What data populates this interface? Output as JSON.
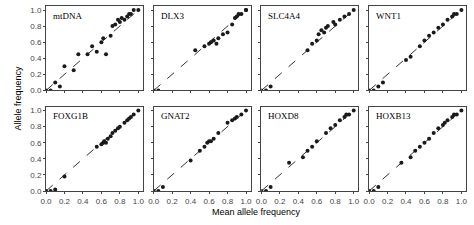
{
  "chart_data": [
    {
      "type": "scatter",
      "title": "mtDNA",
      "xlabel": "Mean allele frequency",
      "ylabel": "Allele frequency",
      "x": [
        0.0,
        0.05,
        0.1,
        0.15,
        0.2,
        0.3,
        0.35,
        0.45,
        0.5,
        0.55,
        0.6,
        0.62,
        0.65,
        0.7,
        0.72,
        0.75,
        0.78,
        0.8,
        0.82,
        0.85,
        0.88,
        0.9,
        0.92,
        0.95,
        1.0
      ],
      "values": [
        0.0,
        0.0,
        0.1,
        0.05,
        0.3,
        0.25,
        0.45,
        0.45,
        0.55,
        0.48,
        0.6,
        0.65,
        0.45,
        0.68,
        0.8,
        0.82,
        0.88,
        0.85,
        0.9,
        0.88,
        0.92,
        0.95,
        0.95,
        1.0,
        1.0
      ],
      "color": "#1a1a1a",
      "marker": "circle",
      "line_style": "dashed",
      "grid": false,
      "tick_labels": "y",
      "xlim": [
        0.0,
        1.05
      ],
      "ylim": [
        0.0,
        1.05
      ],
      "xticks": [
        {
          "value": 0.0,
          "label": "0.0"
        },
        0.2,
        0.4,
        0.6,
        0.8,
        {
          "value": 1.0,
          "label": "1.0"
        }
      ],
      "yticks": [
        {
          "value": 0.0,
          "label": "0.0"
        },
        0.2,
        0.4,
        0.6,
        0.8,
        {
          "value": 1.0,
          "label": "1.0"
        }
      ]
    },
    {
      "type": "scatter",
      "title": "DLX3",
      "xlabel": "Mean allele frequency",
      "ylabel": "Allele frequency",
      "x": [
        0.0,
        0.05,
        0.45,
        0.55,
        0.6,
        0.62,
        0.65,
        0.68,
        0.7,
        0.75,
        0.8,
        0.85,
        0.88,
        0.9,
        0.92,
        0.95,
        1.0,
        1.0
      ],
      "values": [
        0.0,
        0.0,
        0.5,
        0.55,
        0.58,
        0.6,
        0.62,
        0.58,
        0.65,
        0.7,
        0.72,
        0.82,
        0.9,
        0.92,
        0.95,
        0.95,
        1.0,
        1.0
      ],
      "color": "#1a1a1a",
      "marker": "circle",
      "line_style": "dashed",
      "grid": false,
      "tick_labels": false,
      "xlim": [
        0.0,
        1.05
      ],
      "ylim": [
        0.0,
        1.05
      ],
      "xticks": [
        {
          "value": 0.0,
          "label": "0.0"
        },
        0.2,
        0.4,
        0.6,
        0.8,
        {
          "value": 1.0,
          "label": "1.0"
        }
      ],
      "yticks": [
        {
          "value": 0.0,
          "label": "0.0"
        },
        0.2,
        0.4,
        0.6,
        0.8,
        {
          "value": 1.0,
          "label": "1.0"
        }
      ]
    },
    {
      "type": "scatter",
      "title": "SLC4A4",
      "xlabel": "Mean allele frequency",
      "ylabel": "Allele frequency",
      "x": [
        0.0,
        0.05,
        0.1,
        0.5,
        0.55,
        0.6,
        0.62,
        0.65,
        0.68,
        0.7,
        0.72,
        0.78,
        0.8,
        0.85,
        0.9,
        0.95,
        1.0
      ],
      "values": [
        0.0,
        0.0,
        0.05,
        0.5,
        0.58,
        0.62,
        0.7,
        0.75,
        0.72,
        0.78,
        0.8,
        0.85,
        0.82,
        0.88,
        0.92,
        0.95,
        1.0
      ],
      "color": "#1a1a1a",
      "marker": "circle",
      "line_style": "dashed",
      "grid": false,
      "tick_labels": false,
      "xlim": [
        0.0,
        1.05
      ],
      "ylim": [
        0.0,
        1.05
      ],
      "xticks": [
        {
          "value": 0.0,
          "label": "0.0"
        },
        0.2,
        0.4,
        0.6,
        0.8,
        {
          "value": 1.0,
          "label": "1.0"
        }
      ],
      "yticks": [
        {
          "value": 0.0,
          "label": "0.0"
        },
        0.2,
        0.4,
        0.6,
        0.8,
        {
          "value": 1.0,
          "label": "1.0"
        }
      ]
    },
    {
      "type": "scatter",
      "title": "WNT1",
      "xlabel": "Mean allele frequency",
      "ylabel": "Allele frequency",
      "x": [
        0.0,
        0.05,
        0.1,
        0.15,
        0.4,
        0.45,
        0.55,
        0.6,
        0.65,
        0.7,
        0.75,
        0.8,
        0.85,
        0.9,
        0.92,
        0.95,
        1.0
      ],
      "values": [
        0.0,
        0.0,
        0.05,
        0.1,
        0.38,
        0.42,
        0.55,
        0.62,
        0.68,
        0.72,
        0.78,
        0.82,
        0.88,
        0.92,
        0.95,
        0.95,
        1.0
      ],
      "color": "#1a1a1a",
      "marker": "circle",
      "line_style": "dashed",
      "grid": false,
      "tick_labels": false,
      "xlim": [
        0.0,
        1.05
      ],
      "ylim": [
        0.0,
        1.05
      ],
      "xticks": [
        {
          "value": 0.0,
          "label": "0.0"
        },
        0.2,
        0.4,
        0.6,
        0.8,
        {
          "value": 1.0,
          "label": "1.0"
        }
      ],
      "yticks": [
        {
          "value": 0.0,
          "label": "0.0"
        },
        0.2,
        0.4,
        0.6,
        0.8,
        {
          "value": 1.0,
          "label": "1.0"
        }
      ]
    },
    {
      "type": "scatter",
      "title": "FOXG1B",
      "xlabel": "Mean allele frequency",
      "ylabel": "Allele frequency",
      "x": [
        0.0,
        0.05,
        0.1,
        0.2,
        0.55,
        0.6,
        0.62,
        0.63,
        0.65,
        0.67,
        0.7,
        0.72,
        0.75,
        0.78,
        0.8,
        0.85,
        0.88,
        0.9,
        0.92,
        0.95,
        1.0
      ],
      "values": [
        0.0,
        0.0,
        0.02,
        0.18,
        0.55,
        0.58,
        0.6,
        0.62,
        0.6,
        0.65,
        0.68,
        0.72,
        0.75,
        0.78,
        0.8,
        0.85,
        0.88,
        0.9,
        0.92,
        0.95,
        1.0
      ],
      "color": "#1a1a1a",
      "marker": "circle",
      "line_style": "dashed",
      "grid": false,
      "xlim": [
        0.0,
        1.05
      ],
      "ylim": [
        0.0,
        1.05
      ],
      "xticks": [
        {
          "value": 0.0,
          "label": "0.0"
        },
        0.2,
        0.4,
        0.6,
        0.8,
        {
          "value": 1.0,
          "label": "1.0"
        }
      ],
      "yticks": [
        {
          "value": 0.0,
          "label": "0.0"
        },
        0.2,
        0.4,
        0.6,
        0.8,
        {
          "value": 1.0,
          "label": "1.0"
        }
      ]
    },
    {
      "type": "scatter",
      "title": "GNAT2",
      "xlabel": "Mean allele frequency",
      "ylabel": "Allele frequency",
      "x": [
        0.0,
        0.05,
        0.1,
        0.4,
        0.5,
        0.55,
        0.58,
        0.6,
        0.62,
        0.65,
        0.7,
        0.8,
        0.85,
        0.88,
        0.9,
        0.95,
        1.0
      ],
      "values": [
        0.0,
        0.0,
        0.05,
        0.38,
        0.5,
        0.55,
        0.6,
        0.62,
        0.62,
        0.65,
        0.72,
        0.85,
        0.88,
        0.9,
        0.92,
        0.95,
        1.0
      ],
      "color": "#1a1a1a",
      "marker": "circle",
      "line_style": "dashed",
      "grid": false,
      "tick_labels": "x",
      "xlim": [
        0.0,
        1.05
      ],
      "ylim": [
        0.0,
        1.05
      ],
      "xticks": [
        {
          "value": 0.0,
          "label": "0.0"
        },
        0.2,
        0.4,
        0.6,
        0.8,
        {
          "value": 1.0,
          "label": "1.0"
        }
      ],
      "yticks": [
        {
          "value": 0.0,
          "label": "0.0"
        },
        0.2,
        0.4,
        0.6,
        0.8,
        {
          "value": 1.0,
          "label": "1.0"
        }
      ]
    },
    {
      "type": "scatter",
      "title": "HOXD8",
      "xlabel": "Mean allele frequency",
      "ylabel": "Allele frequency",
      "x": [
        0.0,
        0.05,
        0.1,
        0.3,
        0.45,
        0.5,
        0.55,
        0.6,
        0.7,
        0.75,
        0.8,
        0.85,
        0.9,
        0.92,
        0.95,
        1.0
      ],
      "values": [
        0.0,
        0.0,
        0.05,
        0.35,
        0.42,
        0.5,
        0.55,
        0.62,
        0.72,
        0.78,
        0.82,
        0.88,
        0.92,
        0.95,
        0.95,
        1.0
      ],
      "color": "#1a1a1a",
      "marker": "circle",
      "line_style": "dashed",
      "grid": false,
      "tick_labels": "x",
      "xlim": [
        0.0,
        1.05
      ],
      "ylim": [
        0.0,
        1.05
      ],
      "xticks": [
        {
          "value": 0.0,
          "label": "0.0"
        },
        0.2,
        0.4,
        0.6,
        0.8,
        {
          "value": 1.0,
          "label": "1.0"
        }
      ],
      "yticks": [
        {
          "value": 0.0,
          "label": "0.0"
        },
        0.2,
        0.4,
        0.6,
        0.8,
        {
          "value": 1.0,
          "label": "1.0"
        }
      ]
    },
    {
      "type": "scatter",
      "title": "HOXB13",
      "xlabel": "Mean allele frequency",
      "ylabel": "Allele frequency",
      "x": [
        0.0,
        0.05,
        0.1,
        0.35,
        0.45,
        0.5,
        0.55,
        0.6,
        0.65,
        0.7,
        0.75,
        0.8,
        0.82,
        0.85,
        0.9,
        0.92,
        0.95,
        1.0
      ],
      "values": [
        0.0,
        0.0,
        0.05,
        0.35,
        0.42,
        0.5,
        0.55,
        0.6,
        0.65,
        0.72,
        0.78,
        0.82,
        0.85,
        0.88,
        0.92,
        0.95,
        0.95,
        1.0
      ],
      "color": "#1a1a1a",
      "marker": "circle",
      "line_style": "dashed",
      "grid": false,
      "tick_labels": "x",
      "xlim": [
        0.0,
        1.05
      ],
      "ylim": [
        0.0,
        1.05
      ],
      "xticks": [
        {
          "value": 0.0,
          "label": "0.0"
        },
        0.2,
        0.4,
        0.6,
        0.8,
        {
          "value": 1.0,
          "label": "1.0"
        }
      ],
      "yticks": [
        {
          "value": 0.0,
          "label": "0.0"
        },
        0.2,
        0.4,
        0.6,
        0.8,
        {
          "value": 1.0,
          "label": "1.0"
        }
      ]
    }
  ]
}
